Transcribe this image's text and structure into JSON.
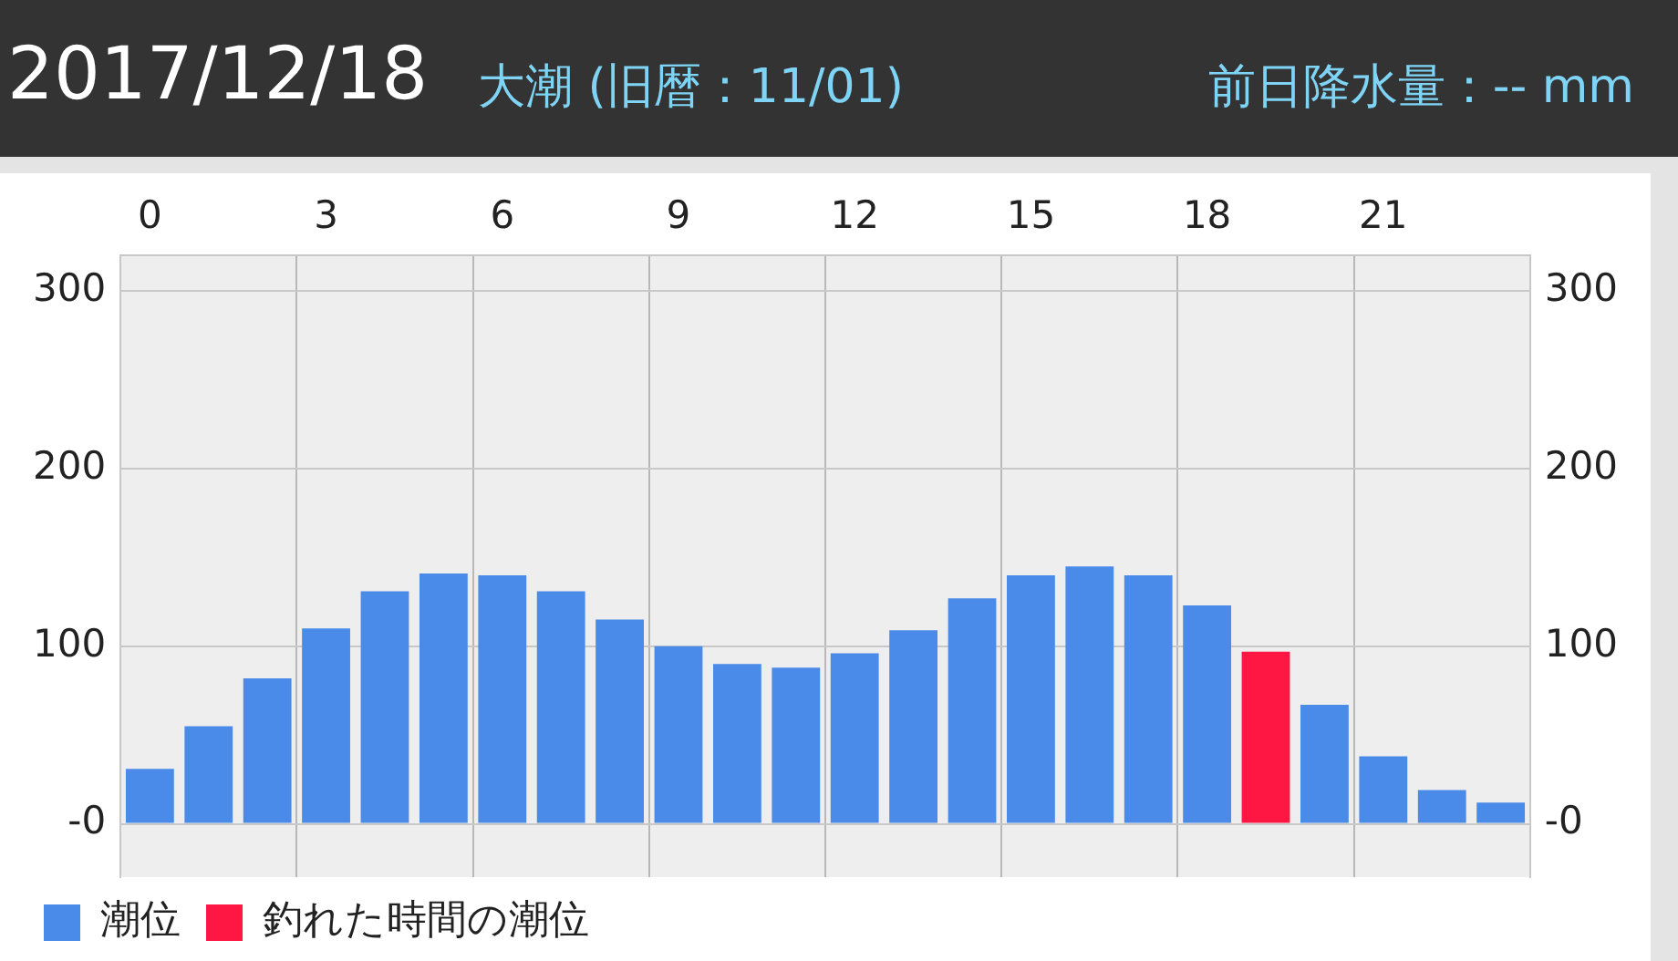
{
  "chart_data": {
    "type": "bar",
    "title": "2017/12/18",
    "subtitle": "大潮 (旧暦：11/01)",
    "annotations": [
      "前日降水量：-- mm"
    ],
    "categories": [
      "0",
      null,
      null,
      "3",
      null,
      null,
      "6",
      null,
      null,
      "9",
      null,
      null,
      "12",
      null,
      null,
      "15",
      null,
      null,
      "18",
      null,
      null,
      "21",
      null,
      null
    ],
    "series": [
      {
        "name": "潮位",
        "color": "#4a8ae8",
        "values": [
          31,
          55,
          82,
          110,
          131,
          141,
          140,
          131,
          115,
          100,
          90,
          88,
          96,
          109,
          127,
          140,
          145,
          140,
          123,
          null,
          67,
          38,
          19,
          12
        ]
      },
      {
        "name": "釣れた時間の潮位",
        "color": "#ff1744",
        "values": [
          null,
          null,
          null,
          null,
          null,
          null,
          null,
          null,
          null,
          null,
          null,
          null,
          null,
          null,
          null,
          null,
          null,
          null,
          null,
          97,
          null,
          null,
          null,
          null
        ]
      }
    ],
    "stacked": true,
    "ylim": [
      -30,
      320
    ],
    "yticks": [
      {
        "value": 0,
        "label": "-0"
      },
      100,
      200,
      300
    ],
    "y2lim": [
      -30,
      320
    ],
    "y2ticks": [
      {
        "value": 0,
        "label": "-0"
      },
      100,
      200,
      300
    ],
    "grid": true,
    "legend": "bottom left"
  }
}
